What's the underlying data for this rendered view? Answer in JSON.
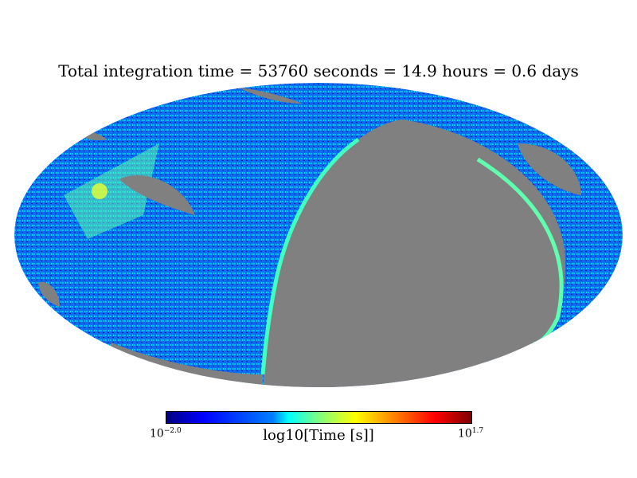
{
  "title": "Total integration time = 53760 seconds = 14.9 hours = 0.6 days",
  "chart_data": {
    "type": "heatmap",
    "projection": "mollweide",
    "title": "Total integration time = 53760 seconds = 14.9 hours = 0.6 days",
    "colorbar": {
      "label": "log10[Time [s]]",
      "min_base": "10",
      "min_exp": "−2.0",
      "max_base": "10",
      "max_exp": "1.7",
      "range": [
        -2.0,
        1.7
      ],
      "colormap": "jet"
    },
    "unseen_color": "#808080"
  }
}
